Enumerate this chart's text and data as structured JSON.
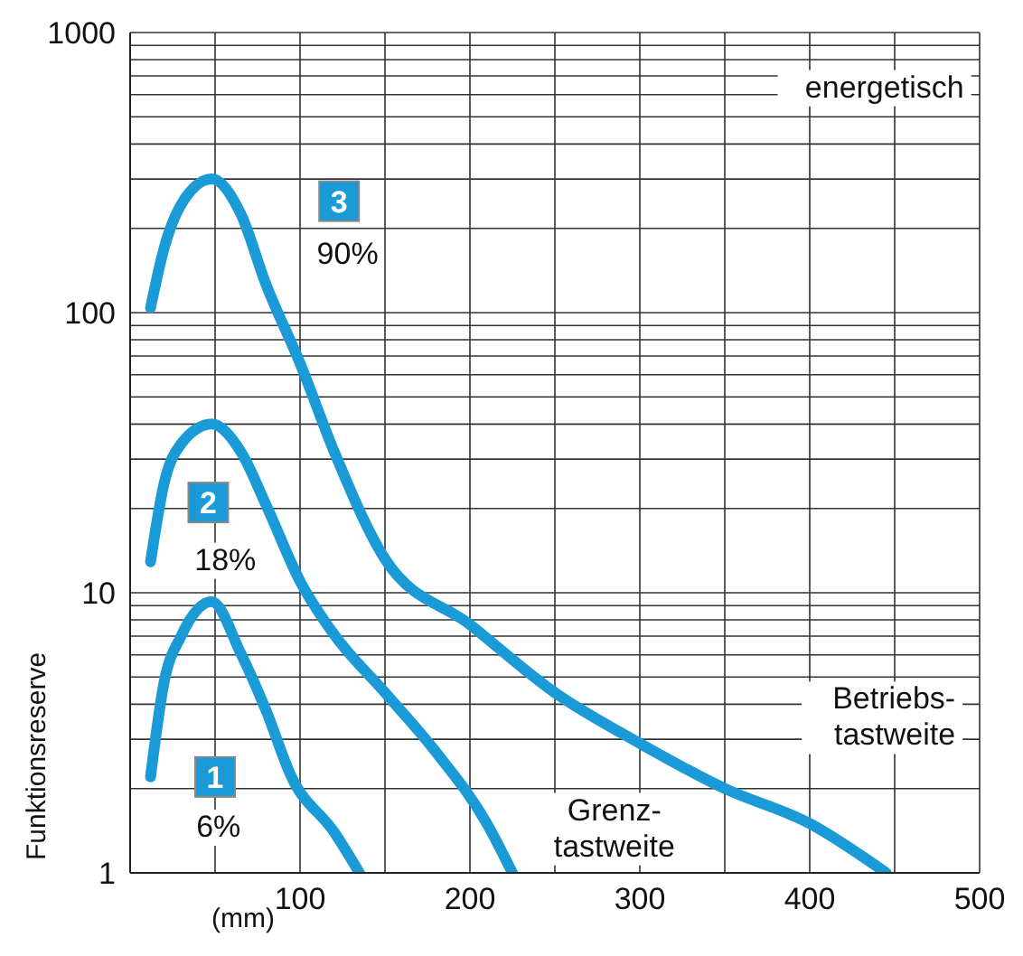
{
  "chart_data": {
    "type": "line",
    "xlabel": "(mm)",
    "ylabel": "Funktionsreserve",
    "xlim": [
      0,
      500
    ],
    "xticks": [
      {
        "value": 50,
        "label": null
      },
      100,
      {
        "value": 150,
        "label": null
      },
      200,
      {
        "value": 250,
        "label": null
      },
      300,
      {
        "value": 350,
        "label": null
      },
      400,
      {
        "value": 450,
        "label": null
      },
      500
    ],
    "ylim": [
      1,
      1000
    ],
    "log": "y",
    "yticks": [
      1,
      {
        "value": 2,
        "label": null
      },
      {
        "value": 3,
        "label": null
      },
      {
        "value": 4,
        "label": null
      },
      {
        "value": 5,
        "label": null
      },
      {
        "value": 6,
        "label": null
      },
      {
        "value": 7,
        "label": null
      },
      {
        "value": 8,
        "label": null
      },
      {
        "value": 9,
        "label": null
      },
      10,
      {
        "value": 20,
        "label": null
      },
      {
        "value": 30,
        "label": null
      },
      {
        "value": 40,
        "label": null
      },
      {
        "value": 50,
        "label": null
      },
      {
        "value": 60,
        "label": null
      },
      {
        "value": 70,
        "label": null
      },
      {
        "value": 80,
        "label": null
      },
      {
        "value": 90,
        "label": null
      },
      100,
      {
        "value": 200,
        "label": null
      },
      {
        "value": 300,
        "label": null
      },
      {
        "value": 400,
        "label": null
      },
      {
        "value": 500,
        "label": null
      },
      {
        "value": 600,
        "label": null
      },
      {
        "value": 700,
        "label": null
      },
      {
        "value": 800,
        "label": null
      },
      {
        "value": 900,
        "label": null
      },
      1000
    ],
    "grid": true,
    "marker": "none",
    "line_style": "solid",
    "series": [
      {
        "color": "#1a9ad6",
        "x": [
          12,
          20,
          30,
          48,
          65,
          80,
          95,
          120,
          135
        ],
        "values": [
          2.2,
          4.8,
          7,
          9.3,
          6.1,
          3.8,
          2.2,
          1.4,
          1
        ]
      },
      {
        "color": "#1a9ad6",
        "x": [
          12,
          20,
          30,
          48,
          65,
          80,
          100,
          120,
          150,
          180,
          210,
          225
        ],
        "values": [
          12.9,
          24.6,
          34,
          40,
          32,
          20.6,
          11,
          7.1,
          4.4,
          2.7,
          1.5,
          1
        ]
      },
      {
        "color": "#1a9ad6",
        "x": [
          12,
          20,
          30,
          48,
          65,
          80,
          100,
          120,
          150,
          200,
          250,
          300,
          350,
          400,
          445
        ],
        "values": [
          104,
          170,
          243,
          300,
          226,
          126,
          66,
          32,
          13.2,
          7.7,
          4.4,
          2.9,
          2,
          1.5,
          1
        ]
      }
    ],
    "annotations": [
      {
        "text": "3",
        "x": 123,
        "y": 250
      },
      {
        "text": "90%",
        "x": 128,
        "y": 161
      },
      {
        "text": "2",
        "x": 46,
        "y": 21
      },
      {
        "text": "18%",
        "x": 56,
        "y": 13
      },
      {
        "text": "1",
        "x": 50,
        "y": 2.2
      },
      {
        "text": "6%",
        "x": 52,
        "y": 1.45
      },
      "energetisch",
      "Betriebs-\ntastweite",
      "Grenz-\ntastweite"
    ]
  }
}
